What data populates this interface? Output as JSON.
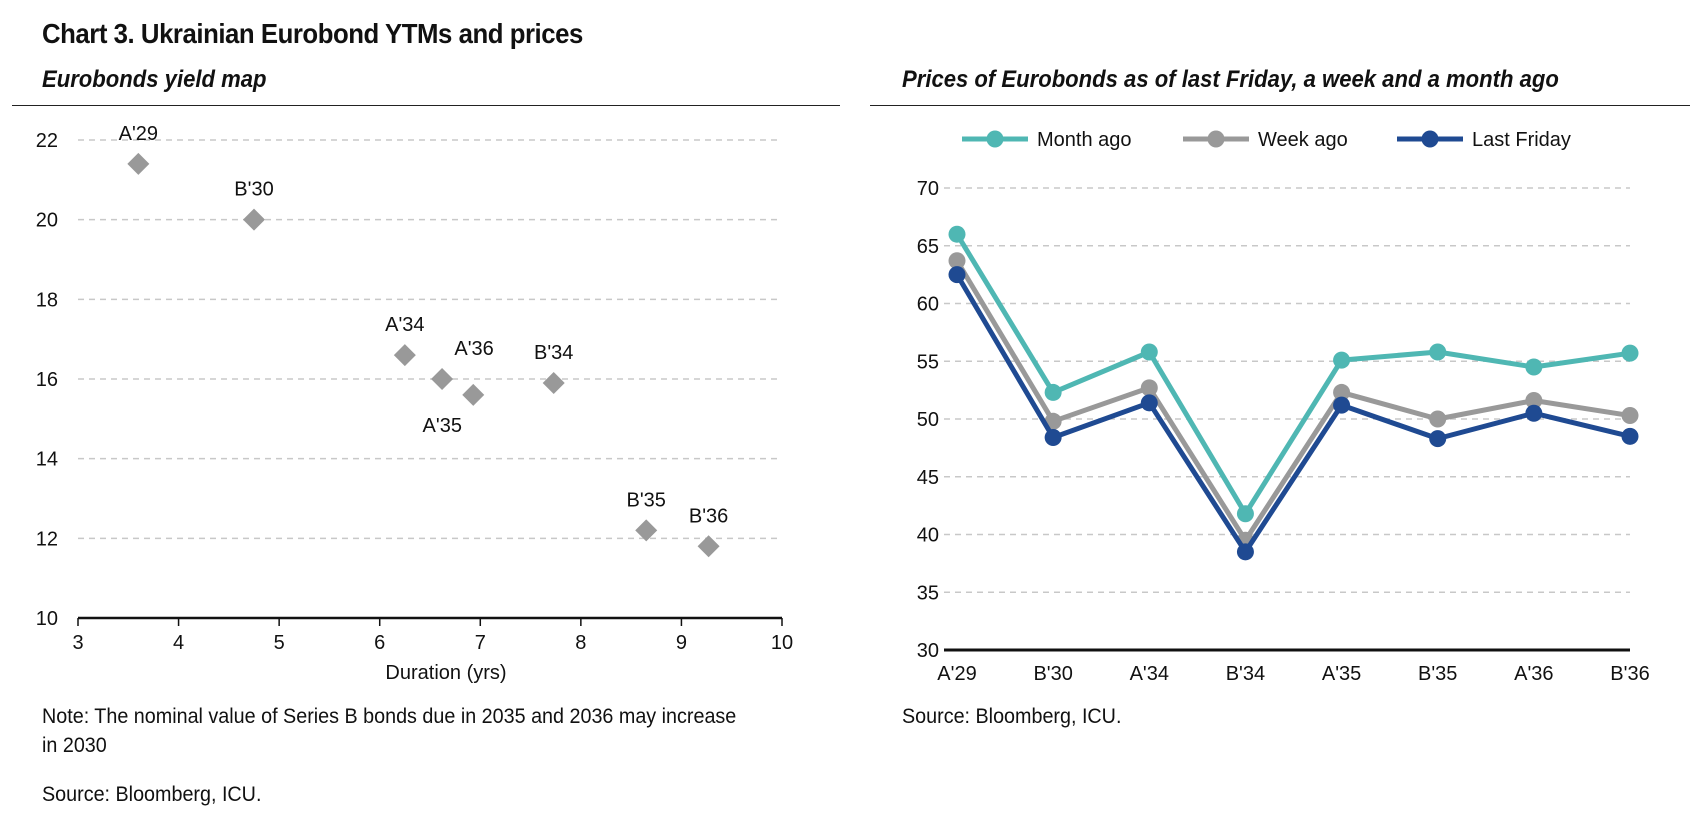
{
  "title": "Chart 3. Ukrainian Eurobond YTMs and prices",
  "left_panel": {
    "subtitle": "Eurobonds yield map",
    "note": "Note: The nominal value of Series B bonds due in 2035 and 2036 may increase in 2030",
    "source": "Source: Bloomberg, ICU."
  },
  "right_panel": {
    "subtitle": "Prices of Eurobonds as of last Friday, a week and a month ago",
    "source": "Source: Bloomberg, ICU."
  },
  "chart_data": [
    {
      "type": "scatter",
      "title": "Eurobonds yield map",
      "xlabel": "Duration (yrs)",
      "ylabel": "",
      "xlim": [
        3,
        10
      ],
      "ylim": [
        10,
        22
      ],
      "xticks": [
        3,
        4,
        5,
        6,
        7,
        8,
        9,
        10
      ],
      "yticks": [
        10,
        12,
        14,
        16,
        18,
        20,
        22
      ],
      "grid": "horizontal dashed",
      "marker_color": "#999999",
      "points": [
        {
          "label": "A'29",
          "x": 3.6,
          "y": 21.4,
          "label_pos": "above"
        },
        {
          "label": "B'30",
          "x": 4.75,
          "y": 20.0,
          "label_pos": "above"
        },
        {
          "label": "A'34",
          "x": 6.25,
          "y": 16.6,
          "label_pos": "above"
        },
        {
          "label": "A'36",
          "x": 6.62,
          "y": 16.0,
          "label_pos": "above-right"
        },
        {
          "label": "A'35",
          "x": 6.93,
          "y": 15.6,
          "label_pos": "below-left"
        },
        {
          "label": "B'34",
          "x": 7.73,
          "y": 15.9,
          "label_pos": "above"
        },
        {
          "label": "B'35",
          "x": 8.65,
          "y": 12.2,
          "label_pos": "above"
        },
        {
          "label": "B'36",
          "x": 9.27,
          "y": 11.8,
          "label_pos": "above"
        }
      ]
    },
    {
      "type": "line",
      "title": "Prices of Eurobonds as of last Friday, a week and a month ago",
      "categories": [
        "A'29",
        "B'30",
        "A'34",
        "B'34",
        "A'35",
        "B'35",
        "A'36",
        "B'36"
      ],
      "ylim": [
        30,
        70
      ],
      "yticks": [
        30,
        35,
        40,
        45,
        50,
        55,
        60,
        65,
        70
      ],
      "grid": "horizontal dashed",
      "legend": "top",
      "series": [
        {
          "name": "Month ago",
          "color": "#4fb7b3",
          "values": [
            66.0,
            52.3,
            55.8,
            41.8,
            55.1,
            55.8,
            54.5,
            55.7
          ]
        },
        {
          "name": "Week ago",
          "color": "#999999",
          "values": [
            63.7,
            49.8,
            52.7,
            39.5,
            52.3,
            50.0,
            51.6,
            50.3
          ]
        },
        {
          "name": "Last Friday",
          "color": "#1f4a92",
          "values": [
            62.5,
            48.4,
            51.4,
            38.5,
            51.2,
            48.3,
            50.5,
            48.5
          ]
        }
      ]
    }
  ]
}
